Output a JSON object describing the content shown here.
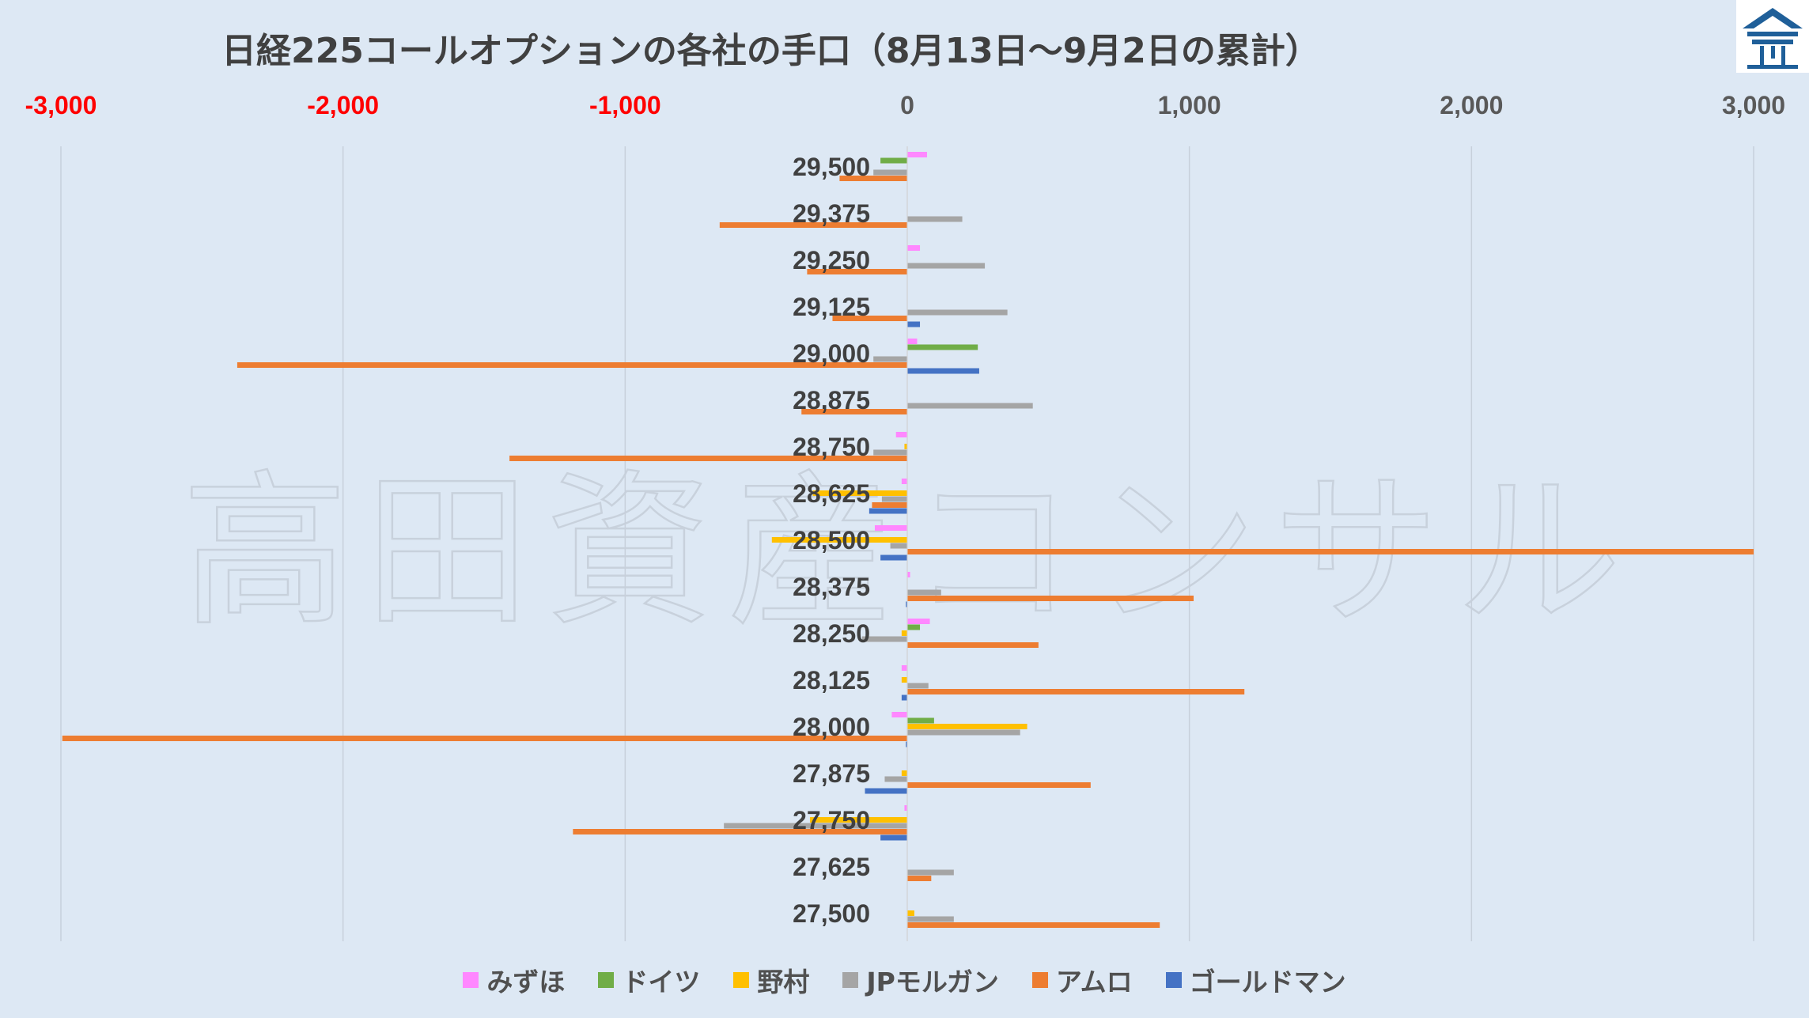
{
  "title": "日経225コールオプションの各社の手口（8月13日〜9月2日の累計）",
  "watermark": "高田資産コンサル",
  "chart_data": {
    "type": "bar",
    "orientation": "horizontal",
    "title": "日経225コールオプションの各社の手口（8月13日〜9月2日の累計）",
    "xlim": [
      -3000,
      3000
    ],
    "x_ticks": [
      "-3,000",
      "-2,000",
      "-1,000",
      "0",
      "1,000",
      "2,000",
      "3,000"
    ],
    "x_tick_values": [
      -3000,
      -2000,
      -1000,
      0,
      1000,
      2000,
      3000
    ],
    "negative_tick_color": "#ff0000",
    "grid": "vertical",
    "legend_position": "bottom",
    "categories": [
      "29,500",
      "29,375",
      "29,250",
      "29,125",
      "29,000",
      "28,875",
      "28,750",
      "28,625",
      "28,500",
      "28,375",
      "28,250",
      "28,125",
      "28,000",
      "27,875",
      "27,750",
      "27,625",
      "27,500"
    ],
    "series": [
      {
        "name": "みずほ",
        "color": "#ff88ff",
        "values": [
          70,
          0,
          45,
          0,
          35,
          0,
          -40,
          -20,
          -115,
          10,
          80,
          -20,
          -55,
          0,
          -10,
          0,
          0
        ]
      },
      {
        "name": "ドイツ",
        "color": "#70ad47",
        "values": [
          -95,
          0,
          0,
          0,
          250,
          0,
          0,
          0,
          0,
          0,
          45,
          0,
          95,
          0,
          0,
          0,
          0
        ]
      },
      {
        "name": "野村",
        "color": "#ffc000",
        "values": [
          0,
          0,
          0,
          0,
          0,
          0,
          -10,
          -335,
          -480,
          0,
          -20,
          -20,
          425,
          -20,
          -345,
          0,
          25
        ]
      },
      {
        "name": "JPモルガン",
        "color": "#a5a5a5",
        "values": [
          -120,
          195,
          275,
          355,
          -120,
          445,
          -120,
          -90,
          -60,
          120,
          -160,
          75,
          400,
          -80,
          -650,
          165,
          165
        ]
      },
      {
        "name": "アムロ",
        "color": "#ed7d31",
        "values": [
          -240,
          -665,
          -355,
          -265,
          -2375,
          -375,
          -1410,
          -125,
          3000,
          1015,
          465,
          1195,
          -2995,
          650,
          -1185,
          85,
          895
        ]
      },
      {
        "name": "ゴールドマン",
        "color": "#4472c4",
        "values": [
          0,
          0,
          0,
          45,
          255,
          0,
          0,
          -135,
          -95,
          -5,
          0,
          -20,
          -5,
          -150,
          -95,
          0,
          0
        ]
      }
    ]
  }
}
